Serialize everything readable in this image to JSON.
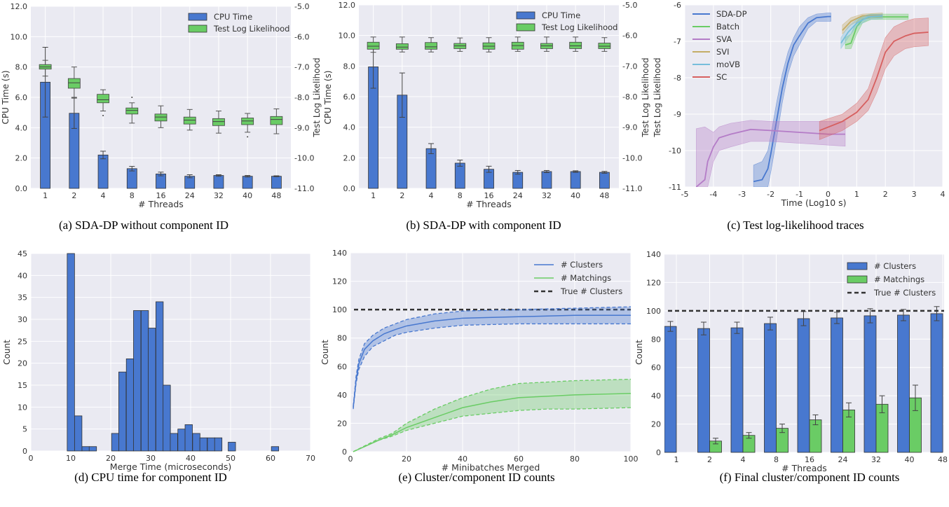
{
  "captions": [
    "(a) SDA-DP without component ID",
    "(b) SDA-DP with component ID",
    "(c) Test log-likelihood traces",
    "(d) CPU time for component ID",
    "(e) Cluster/component ID counts",
    "(f) Final cluster/component ID counts"
  ],
  "colors": {
    "blue": "#4878cf",
    "green": "#6acc65",
    "purple": "#b47cc7",
    "gold": "#c4ad66",
    "lightblue": "#77bedb",
    "red": "#d65f5f",
    "background": "#eaeaf2",
    "grid": "#ffffff",
    "dashed": "#333333"
  },
  "chart_data": [
    {
      "id": "a",
      "type": "bar+box",
      "grid": true,
      "legend_position": "top-right",
      "xlabel": "# Threads",
      "ylabel": "CPU Time (s)",
      "ylabel_right": "Test Log Likelihood",
      "categories": [
        "1",
        "2",
        "4",
        "8",
        "16",
        "24",
        "32",
        "40",
        "48"
      ],
      "ylim": [
        0,
        12
      ],
      "ytick_labels": [
        "0.0",
        "2.0",
        "4.0",
        "6.0",
        "8.0",
        "10.0",
        "12.0"
      ],
      "ylim_right": [
        -11,
        -5
      ],
      "ytick_labels_right": [
        "-11.0",
        "-10.0",
        "-9.0",
        "-8.0",
        "-7.0",
        "-6.0",
        "-5.0"
      ],
      "legend": [
        "CPU Time",
        "Test Log Likelihood"
      ],
      "cpu_time": {
        "values": [
          7.0,
          4.95,
          2.2,
          1.3,
          0.95,
          0.8,
          0.85,
          0.8,
          0.8
        ],
        "errors": [
          2.3,
          1.0,
          0.25,
          0.15,
          0.12,
          0.1,
          0.05,
          0.05,
          0.03
        ]
      },
      "test_log_likelihood_box": [
        {
          "whislo": -7.3,
          "q1": -7.07,
          "med": -7.0,
          "q3": -6.92,
          "whishi": -6.78,
          "fliers": []
        },
        {
          "whislo": -8.0,
          "q1": -7.7,
          "med": -7.52,
          "q3": -7.38,
          "whishi": -7.0,
          "fliers": []
        },
        {
          "whislo": -8.45,
          "q1": -8.18,
          "med": -8.08,
          "q3": -7.9,
          "whishi": -7.75,
          "fliers": [
            -8.6
          ]
        },
        {
          "whislo": -8.85,
          "q1": -8.55,
          "med": -8.43,
          "q3": -8.35,
          "whishi": -8.18,
          "fliers": [
            -8.0
          ]
        },
        {
          "whislo": -9.0,
          "q1": -8.78,
          "med": -8.65,
          "q3": -8.55,
          "whishi": -8.28,
          "fliers": []
        },
        {
          "whislo": -9.08,
          "q1": -8.88,
          "med": -8.75,
          "q3": -8.65,
          "whishi": -8.4,
          "fliers": []
        },
        {
          "whislo": -9.18,
          "q1": -8.93,
          "med": -8.8,
          "q3": -8.7,
          "whishi": -8.45,
          "fliers": []
        },
        {
          "whislo": -9.15,
          "q1": -8.9,
          "med": -8.78,
          "q3": -8.68,
          "whishi": -8.53,
          "fliers": [
            -9.3
          ]
        },
        {
          "whislo": -9.2,
          "q1": -8.9,
          "med": -8.73,
          "q3": -8.63,
          "whishi": -8.38,
          "fliers": []
        }
      ]
    },
    {
      "id": "b",
      "type": "bar+box",
      "grid": true,
      "legend_position": "top-right",
      "xlabel": "# Threads",
      "ylabel": "CPU Time (s)",
      "ylabel_right": "Test Log Likelihood",
      "categories": [
        "1",
        "2",
        "4",
        "8",
        "16",
        "24",
        "32",
        "40",
        "48"
      ],
      "ylim": [
        0,
        12
      ],
      "ytick_labels": [
        "0.0",
        "2.0",
        "4.0",
        "6.0",
        "8.0",
        "10.0",
        "12.0"
      ],
      "ylim_right": [
        -11,
        -5
      ],
      "ytick_labels_right": [
        "-11.0",
        "-10.0",
        "-9.0",
        "-8.0",
        "-7.0",
        "-6.0",
        "-5.0"
      ],
      "legend": [
        "CPU Time",
        "Test Log Likelihood"
      ],
      "cpu_time": {
        "values": [
          7.95,
          6.1,
          2.6,
          1.65,
          1.25,
          1.05,
          1.1,
          1.1,
          1.05
        ],
        "errors": [
          1.4,
          1.45,
          0.33,
          0.2,
          0.2,
          0.12,
          0.07,
          0.05,
          0.06
        ]
      },
      "test_log_likelihood_box": [
        {
          "whislo": -6.55,
          "q1": -6.45,
          "med": -6.35,
          "q3": -6.22,
          "whishi": -6.05,
          "fliers": []
        },
        {
          "whislo": -6.54,
          "q1": -6.45,
          "med": -6.38,
          "q3": -6.27,
          "whishi": -6.05,
          "fliers": []
        },
        {
          "whislo": -6.54,
          "q1": -6.45,
          "med": -6.37,
          "q3": -6.23,
          "whishi": -6.07,
          "fliers": []
        },
        {
          "whislo": -6.52,
          "q1": -6.43,
          "med": -6.34,
          "q3": -6.26,
          "whishi": -6.08,
          "fliers": []
        },
        {
          "whislo": -6.54,
          "q1": -6.45,
          "med": -6.35,
          "q3": -6.24,
          "whishi": -6.07,
          "fliers": []
        },
        {
          "whislo": -6.52,
          "q1": -6.45,
          "med": -6.33,
          "q3": -6.22,
          "whishi": -6.05,
          "fliers": []
        },
        {
          "whislo": -6.52,
          "q1": -6.43,
          "med": -6.34,
          "q3": -6.26,
          "whishi": -6.05,
          "fliers": []
        },
        {
          "whislo": -6.52,
          "q1": -6.43,
          "med": -6.34,
          "q3": -6.22,
          "whishi": -6.05,
          "fliers": []
        },
        {
          "whislo": -6.52,
          "q1": -6.43,
          "med": -6.35,
          "q3": -6.25,
          "whishi": -6.07,
          "fliers": []
        }
      ]
    },
    {
      "id": "c",
      "type": "line",
      "grid": true,
      "legend_position": "top-left",
      "xlabel": "Time (Log10 s)",
      "ylabel": "Test Log Likelihood",
      "xlim": [
        -5,
        4
      ],
      "xtick_labels": [
        "-5",
        "-4",
        "-3",
        "-2",
        "-1",
        "0",
        "1",
        "2",
        "3",
        "4"
      ],
      "ylim": [
        -11,
        -6
      ],
      "ytick_labels": [
        "-11",
        "-10",
        "-9",
        "-8",
        "-7",
        "-6"
      ],
      "series": [
        {
          "name": "SDA-DP",
          "color": "blue",
          "points": [
            [
              -2.6,
              -10.85,
              -11,
              -10.4
            ],
            [
              -2.3,
              -10.8,
              -11,
              -10.3
            ],
            [
              -2.1,
              -10.5,
              -11,
              -10.0
            ],
            [
              -2.0,
              -10.1,
              -10.6,
              -9.6
            ],
            [
              -1.8,
              -9.2,
              -9.7,
              -8.7
            ],
            [
              -1.6,
              -8.3,
              -8.7,
              -7.9
            ],
            [
              -1.4,
              -7.6,
              -7.9,
              -7.3
            ],
            [
              -1.2,
              -7.1,
              -7.4,
              -6.9
            ],
            [
              -1.0,
              -6.85,
              -7.1,
              -6.6
            ],
            [
              -0.7,
              -6.5,
              -6.65,
              -6.35
            ],
            [
              -0.4,
              -6.35,
              -6.45,
              -6.25
            ],
            [
              0,
              -6.32,
              -6.45,
              -6.22
            ],
            [
              0.1,
              -6.32,
              -6.45,
              -6.22
            ]
          ]
        },
        {
          "name": "Batch",
          "color": "green",
          "points": [
            [
              0.6,
              -7.1,
              -7.2,
              -6.9
            ],
            [
              0.8,
              -7.05,
              -7.2,
              -6.8
            ],
            [
              1.0,
              -6.6,
              -6.8,
              -6.45
            ],
            [
              1.2,
              -6.4,
              -6.5,
              -6.3
            ],
            [
              1.5,
              -6.33,
              -6.4,
              -6.25
            ],
            [
              2.8,
              -6.33,
              -6.4,
              -6.25
            ]
          ]
        },
        {
          "name": "SVA",
          "color": "purple",
          "points": [
            [
              -4.6,
              -11,
              -11,
              -9.4
            ],
            [
              -4.3,
              -10.8,
              -11,
              -9.35
            ],
            [
              -4.2,
              -10.3,
              -11,
              -9.4
            ],
            [
              -4.0,
              -9.9,
              -10.3,
              -9.5
            ],
            [
              -3.8,
              -9.65,
              -10.0,
              -9.35
            ],
            [
              -3.4,
              -9.55,
              -9.9,
              -9.25
            ],
            [
              -2.7,
              -9.42,
              -9.75,
              -9.17
            ],
            [
              -2,
              -9.45,
              -9.75,
              -9.2
            ],
            [
              -1,
              -9.5,
              -9.8,
              -9.2
            ],
            [
              0,
              -9.55,
              -9.85,
              -9.2
            ],
            [
              0.6,
              -9.55,
              -9.88,
              -9.2
            ]
          ]
        },
        {
          "name": "SVI",
          "color": "gold",
          "points": [
            [
              0.5,
              -6.7,
              -6.8,
              -6.55
            ],
            [
              0.8,
              -6.45,
              -6.55,
              -6.35
            ],
            [
              1.2,
              -6.3,
              -6.38,
              -6.25
            ],
            [
              1.9,
              -6.28,
              -6.35,
              -6.22
            ]
          ]
        },
        {
          "name": "moVB",
          "color": "lightblue",
          "points": [
            [
              0.45,
              -7.05,
              -7.2,
              -6.9
            ],
            [
              0.7,
              -6.75,
              -6.9,
              -6.6
            ],
            [
              1.0,
              -6.5,
              -6.6,
              -6.4
            ],
            [
              1.4,
              -6.33,
              -6.4,
              -6.27
            ],
            [
              1.9,
              -6.3,
              -6.38,
              -6.25
            ]
          ]
        },
        {
          "name": "SC",
          "color": "red",
          "points": [
            [
              -0.3,
              -9.45,
              -9.7,
              -9.2
            ],
            [
              0.5,
              -9.2,
              -9.45,
              -9.0
            ],
            [
              1.0,
              -8.95,
              -9.2,
              -8.7
            ],
            [
              1.4,
              -8.6,
              -8.9,
              -8.3
            ],
            [
              1.7,
              -8.0,
              -8.4,
              -7.6
            ],
            [
              2.0,
              -7.3,
              -7.75,
              -6.9
            ],
            [
              2.3,
              -7.0,
              -7.4,
              -6.6
            ],
            [
              2.7,
              -6.85,
              -7.2,
              -6.45
            ],
            [
              3.0,
              -6.78,
              -7.15,
              -6.38
            ],
            [
              3.5,
              -6.75,
              -7.12,
              -6.36
            ]
          ]
        }
      ]
    },
    {
      "id": "d",
      "type": "histogram",
      "grid": true,
      "xlabel": "Merge Time (microseconds)",
      "ylabel": "Count",
      "xlim": [
        0,
        70
      ],
      "xtick_labels": [
        "0",
        "10",
        "20",
        "30",
        "40",
        "50",
        "60",
        "70"
      ],
      "ylim": [
        0,
        45
      ],
      "ytick_labels": [
        "0",
        "5",
        "10",
        "15",
        "20",
        "25",
        "30",
        "35",
        "40",
        "45"
      ],
      "bin_width": 1.84,
      "bins": [
        [
          9.1,
          45
        ],
        [
          10.95,
          8
        ],
        [
          12.8,
          1
        ],
        [
          14.6,
          1
        ],
        [
          20.2,
          4
        ],
        [
          22.0,
          18
        ],
        [
          23.9,
          21
        ],
        [
          25.7,
          32
        ],
        [
          27.6,
          32
        ],
        [
          29.4,
          28
        ],
        [
          31.3,
          34
        ],
        [
          33.1,
          15
        ],
        [
          34.9,
          4
        ],
        [
          36.8,
          5
        ],
        [
          38.6,
          6
        ],
        [
          40.5,
          4
        ],
        [
          42.3,
          3
        ],
        [
          44.2,
          3
        ],
        [
          46.0,
          3
        ],
        [
          49.4,
          2
        ],
        [
          60.2,
          1
        ]
      ]
    },
    {
      "id": "e",
      "type": "line",
      "grid": true,
      "legend_position": "top-right",
      "xlabel": "# Minibatches Merged",
      "ylabel": "Count",
      "xlim": [
        0,
        100
      ],
      "xtick_labels": [
        "0",
        "20",
        "40",
        "60",
        "80",
        "100"
      ],
      "ylim": [
        0,
        140
      ],
      "ytick_labels": [
        "0",
        "20",
        "40",
        "60",
        "80",
        "100",
        "120",
        "140"
      ],
      "true_clusters": 100,
      "legend": [
        "# Clusters",
        "# Matchings",
        "True # Clusters"
      ],
      "series": [
        {
          "name": "# Clusters",
          "color": "blue",
          "points": [
            [
              1,
              31,
              30,
              32
            ],
            [
              2,
              50,
              48,
              53
            ],
            [
              3,
              62,
              58,
              65
            ],
            [
              5,
              72,
              67,
              76
            ],
            [
              8,
              78,
              74,
              82
            ],
            [
              12,
              83,
              78,
              87
            ],
            [
              16,
              86,
              82,
              90
            ],
            [
              20,
              88.5,
              84,
              93
            ],
            [
              30,
              92,
              87,
              97
            ],
            [
              40,
              94,
              89,
              99
            ],
            [
              60,
              95,
              90,
              100
            ],
            [
              80,
              96,
              90,
              101
            ],
            [
              100,
              96,
              90,
              102
            ]
          ]
        },
        {
          "name": "# Matchings",
          "color": "green",
          "points": [
            [
              1,
              0,
              0,
              0
            ],
            [
              10,
              8,
              8,
              9
            ],
            [
              15,
              12,
              11,
              13
            ],
            [
              20,
              17,
              15,
              20
            ],
            [
              30,
              24,
              20,
              30
            ],
            [
              40,
              31,
              25,
              38
            ],
            [
              50,
              35,
              27,
              44
            ],
            [
              60,
              38,
              29,
              48
            ],
            [
              70,
              39,
              30,
              49
            ],
            [
              80,
              40,
              30,
              50
            ],
            [
              100,
              41,
              31,
              51
            ]
          ]
        }
      ]
    },
    {
      "id": "f",
      "type": "bar",
      "grid": true,
      "legend_position": "top-right",
      "xlabel": "# Threads",
      "ylabel": "Count",
      "categories": [
        "1",
        "2",
        "4",
        "8",
        "16",
        "24",
        "32",
        "40",
        "48"
      ],
      "ylim": [
        0,
        140
      ],
      "ytick_labels": [
        "0",
        "20",
        "40",
        "60",
        "80",
        "100",
        "120",
        "140"
      ],
      "true_clusters": 100,
      "legend": [
        "# Clusters",
        "# Matchings",
        "True # Clusters"
      ],
      "series": [
        {
          "name": "# Clusters",
          "color": "blue",
          "values": [
            89,
            87.5,
            88,
            91,
            94.5,
            95,
            96.5,
            97,
            98
          ],
          "errors": [
            3.5,
            4.5,
            4,
            4.5,
            5,
            4,
            5,
            4,
            5
          ]
        },
        {
          "name": "# Matchings",
          "color": "green",
          "values": [
            0,
            8,
            12,
            17,
            23,
            30,
            34,
            38.5,
            null
          ],
          "errors": [
            0,
            2,
            2,
            3,
            3.5,
            5,
            6,
            9,
            null
          ]
        }
      ]
    }
  ]
}
